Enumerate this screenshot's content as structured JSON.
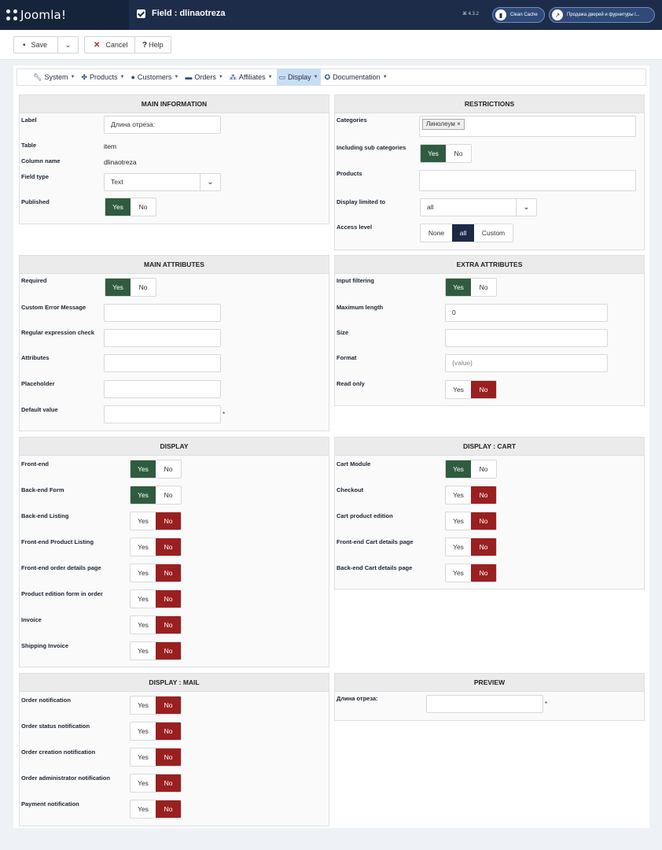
{
  "header": {
    "logo": "Joomla!",
    "page_title": "Field : dlinaotreza",
    "version": "⌘ 4.3.2",
    "clean_cache": "Clean Cache",
    "site_link": "Продажа дверей и фурнитуры l..."
  },
  "toolbar": {
    "save": "Save",
    "cancel": "Cancel",
    "help": "Help"
  },
  "menu": {
    "items": [
      {
        "icon": "wrench-icon",
        "label": "System"
      },
      {
        "icon": "products-icon",
        "label": "Products"
      },
      {
        "icon": "user-icon",
        "label": "Customers"
      },
      {
        "icon": "card-icon",
        "label": "Orders"
      },
      {
        "icon": "users-icon",
        "label": "Affiliates"
      },
      {
        "icon": "monitor-icon",
        "label": "Display"
      },
      {
        "icon": "lifering-icon",
        "label": "Documentation"
      }
    ]
  },
  "main_info": {
    "title": "MAIN INFORMATION",
    "label_label": "Label",
    "label_value": "Длина отреза:",
    "table_label": "Table",
    "table_value": "item",
    "column_label": "Column name",
    "column_value": "dlinaotreza",
    "field_type_label": "Field type",
    "field_type_value": "Text",
    "published_label": "Published"
  },
  "restrictions": {
    "title": "RESTRICTIONS",
    "categories_label": "Categories",
    "category_chip": "Линолеум ×",
    "subcat_label": "Including sub categories",
    "products_label": "Products",
    "display_limited_label": "Display limited to",
    "display_limited_value": "all",
    "access_label": "Access level",
    "access_none": "None",
    "access_all": "all",
    "access_custom": "Custom"
  },
  "main_attrs": {
    "title": "MAIN ATTRIBUTES",
    "required": "Required",
    "custom_error": "Custom Error Message",
    "regex": "Regular expression check",
    "attributes": "Attributes",
    "placeholder": "Placeholder",
    "default_value": "Default value"
  },
  "extra_attrs": {
    "title": "EXTRA ATTRIBUTES",
    "input_filtering": "Input filtering",
    "max_length": "Maximum length",
    "max_length_value": "0",
    "size": "Size",
    "format": "Format",
    "format_placeholder": "{value}",
    "read_only": "Read only"
  },
  "display": {
    "title": "DISPLAY",
    "rows": [
      {
        "label": "Front-end",
        "value": "Yes"
      },
      {
        "label": "Back-end Form",
        "value": "Yes"
      },
      {
        "label": "Back-end Listing",
        "value": "No"
      },
      {
        "label": "Front-end Product Listing",
        "value": "No"
      },
      {
        "label": "Front-end order details page",
        "value": "No"
      },
      {
        "label": "Product edition form in order",
        "value": "No"
      },
      {
        "label": "Invoice",
        "value": "No"
      },
      {
        "label": "Shipping Invoice",
        "value": "No"
      }
    ]
  },
  "display_cart": {
    "title": "DISPLAY : CART",
    "rows": [
      {
        "label": "Cart Module",
        "value": "Yes"
      },
      {
        "label": "Checkout",
        "value": "No"
      },
      {
        "label": "Cart product edition",
        "value": "No"
      },
      {
        "label": "Front-end Cart details page",
        "value": "No"
      },
      {
        "label": "Back-end Cart details page",
        "value": "No"
      }
    ]
  },
  "display_mail": {
    "title": "DISPLAY : MAIL",
    "rows": [
      {
        "label": "Order notification",
        "value": "No"
      },
      {
        "label": "Order status notification",
        "value": "No"
      },
      {
        "label": "Order creation notification",
        "value": "No"
      },
      {
        "label": "Order administrator notification",
        "value": "No"
      },
      {
        "label": "Payment notification",
        "value": "No"
      }
    ]
  },
  "preview": {
    "title": "PREVIEW",
    "label": "Длина отреза:"
  },
  "toggle_labels": {
    "yes": "Yes",
    "no": "No"
  },
  "required_mark": "*",
  "colors": {
    "yes_active": "#2f5c3f",
    "no_active": "#9a2020",
    "header_bg": "#1d2c49"
  }
}
